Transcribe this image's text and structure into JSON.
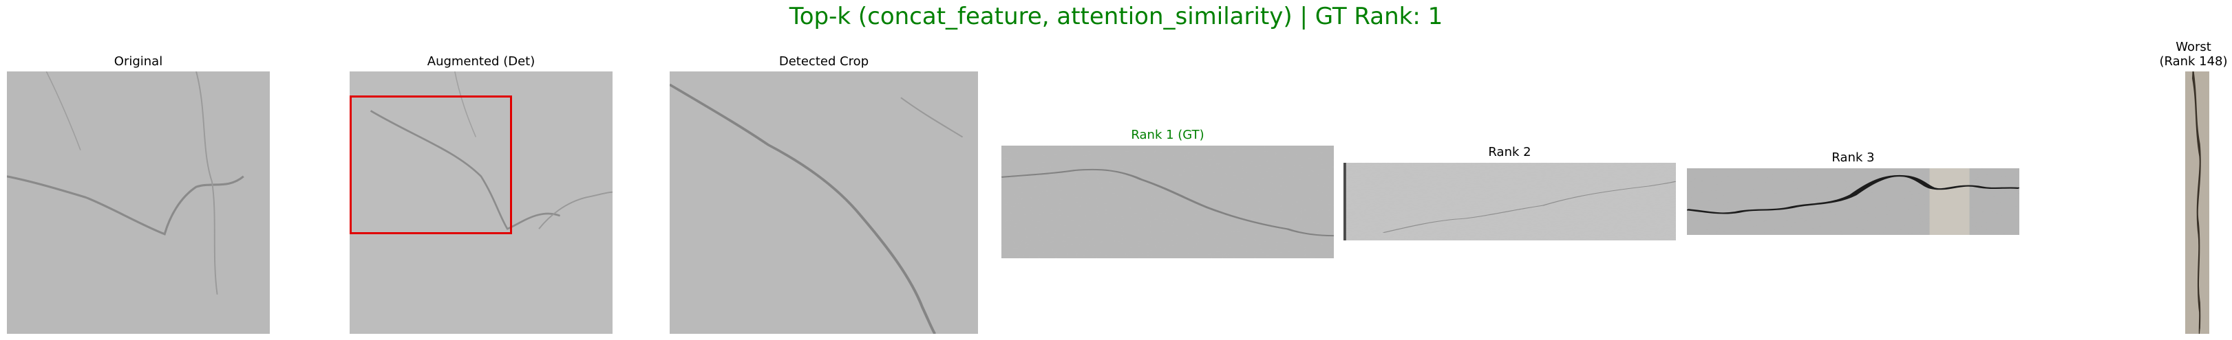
{
  "figure": {
    "title": "Top-k (concat_feature, attention_similarity) | GT Rank: 1",
    "title_color": "#008000"
  },
  "panels": {
    "original": {
      "caption": "Original"
    },
    "augmented": {
      "caption": "Augmented (Det)",
      "box_color": "#e00000"
    },
    "crop": {
      "caption": "Detected Crop"
    },
    "rank1": {
      "caption": "Rank 1 (GT)",
      "caption_color": "#008000"
    },
    "rank2": {
      "caption": "Rank 2"
    },
    "rank3": {
      "caption": "Rank 3"
    },
    "worst": {
      "caption_line1": "Worst",
      "caption_line2": "(Rank 148)"
    }
  }
}
